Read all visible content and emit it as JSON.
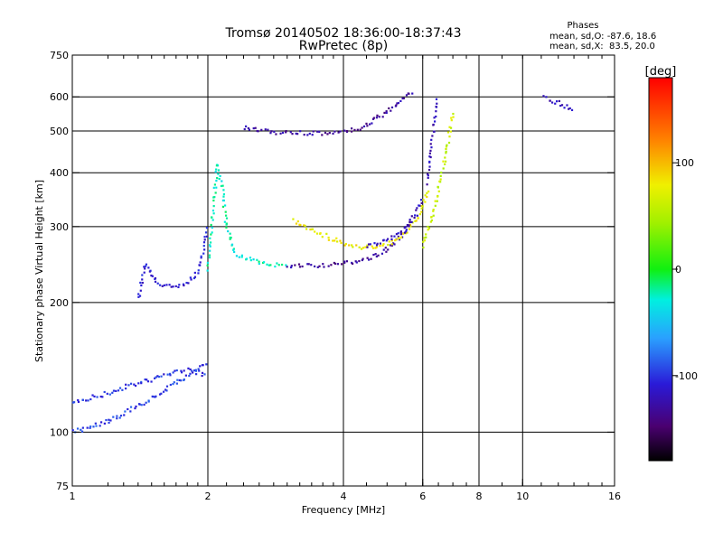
{
  "chart_data": {
    "type": "scatter",
    "title": "Tromsø 20140502 18:36:00-18:37:43",
    "subtitle": "RwPretec (8p)",
    "xlabel": "Frequency [MHz]",
    "ylabel": "Stationary phase Virtual Height [km]",
    "xscale": "log2",
    "yscale": "log",
    "xlim": [
      1,
      16
    ],
    "ylim": [
      75,
      750
    ],
    "xticks": [
      1,
      2,
      4,
      6,
      8,
      10,
      16
    ],
    "xgrid_lines": [
      2,
      4,
      6,
      8,
      10
    ],
    "yticks": [
      75,
      100,
      200,
      300,
      400,
      500,
      600,
      750
    ],
    "grid": true,
    "stats": {
      "title": "Phases",
      "line1": "mean, sd,O: -87.6, 18.6",
      "line2": "mean, sd,X:  83.5, 20.0"
    },
    "colorbar": {
      "label": "[deg]",
      "range": [
        -180,
        180
      ],
      "ticks": [
        100,
        0,
        -100
      ],
      "position": "right"
    },
    "traces": [
      {
        "x": [
          1.4,
          1.45,
          1.55,
          1.65,
          1.8,
          1.9,
          1.95,
          2.0
        ],
        "y": [
          205,
          245,
          220,
          218,
          222,
          235,
          260,
          300
        ],
        "phase": -110
      },
      {
        "x": [
          2.0,
          2.05,
          2.1,
          2.15,
          2.2,
          2.3,
          2.5,
          2.7,
          3.0
        ],
        "y": [
          240,
          330,
          420,
          370,
          300,
          260,
          250,
          245,
          244
        ],
        "phase": -25
      },
      {
        "x": [
          3.0,
          3.5,
          4.0,
          4.5,
          4.9,
          5.3,
          5.7
        ],
        "y": [
          244,
          244,
          246,
          252,
          262,
          280,
          320
        ],
        "phase": -130
      },
      {
        "x": [
          2.4,
          2.6,
          3.0,
          3.5,
          4.0,
          4.4,
          4.7,
          5.2,
          5.7
        ],
        "y": [
          510,
          500,
          495,
          493,
          497,
          510,
          530,
          570,
          620
        ],
        "phase": -130
      },
      {
        "x": [
          3.1,
          3.4,
          3.8,
          4.2,
          4.6,
          5.0,
          5.5,
          5.9,
          6.2
        ],
        "y": [
          310,
          295,
          280,
          270,
          268,
          272,
          290,
          320,
          370
        ],
        "phase": 80
      },
      {
        "x": [
          4.5,
          5.0,
          5.5,
          5.8,
          6.0
        ],
        "y": [
          270,
          280,
          295,
          320,
          350
        ],
        "phase": -120
      },
      {
        "x": [
          6.0,
          6.2,
          6.4,
          6.6,
          6.8,
          7.0
        ],
        "y": [
          270,
          300,
          340,
          390,
          460,
          560
        ],
        "phase": 60
      },
      {
        "x": [
          6.15,
          6.25,
          6.35,
          6.45
        ],
        "y": [
          380,
          440,
          520,
          600
        ],
        "phase": -120
      },
      {
        "x": [
          1.0,
          1.1,
          1.25,
          1.4,
          1.6,
          1.8,
          2.0
        ],
        "y": [
          118,
          120,
          125,
          130,
          135,
          140,
          135
        ],
        "phase": -100
      },
      {
        "x": [
          1.0,
          1.1,
          1.25,
          1.4,
          1.6,
          1.8,
          2.0
        ],
        "y": [
          100,
          103,
          108,
          115,
          125,
          135,
          145
        ],
        "phase": -95
      },
      {
        "x": [
          11.2,
          12.0,
          13.0
        ],
        "y": [
          600,
          580,
          560
        ],
        "phase": -120
      }
    ]
  }
}
